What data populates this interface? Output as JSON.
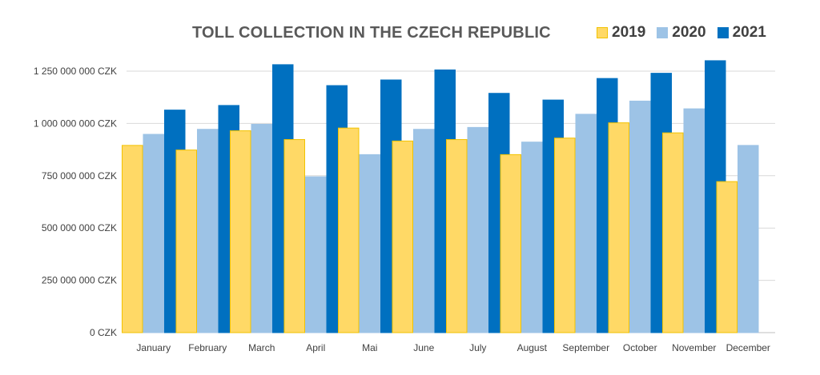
{
  "chart_data": {
    "type": "bar",
    "title": "TOLL COLLECTION IN THE CZECH REPUBLIC",
    "xlabel": "",
    "ylabel": "",
    "categories": [
      "January",
      "February",
      "March",
      "April",
      "Mai",
      "June",
      "July",
      "August",
      "September",
      "October",
      "November",
      "December"
    ],
    "series": [
      {
        "name": "2019",
        "color": "#FFD966",
        "border": "#F2C200",
        "values": [
          895000000,
          873000000,
          965000000,
          923000000,
          978000000,
          916000000,
          923000000,
          851000000,
          930000000,
          1003000000,
          955000000,
          722000000
        ]
      },
      {
        "name": "2020",
        "color": "#9DC3E6",
        "border": "#9DC3E6",
        "values": [
          948000000,
          972000000,
          996000000,
          745000000,
          851000000,
          972000000,
          981000000,
          911000000,
          1044000000,
          1107000000,
          1070000000,
          895000000
        ]
      },
      {
        "name": "2021",
        "color": "#0070C0",
        "border": "#0070C0",
        "values": [
          1064000000,
          1086000000,
          1281000000,
          1181000000,
          1208000000,
          1256000000,
          1144000000,
          1112000000,
          1215000000,
          1240000000,
          1300000000,
          null
        ]
      }
    ],
    "yticks": [
      "0 CZK",
      "250 000 000 CZK",
      "500 000 000 CZK",
      "750 000 000 CZK",
      "1 000 000 000 CZK",
      "1 250 000 000 CZK"
    ],
    "ytick_values": [
      0,
      250000000,
      500000000,
      750000000,
      1000000000,
      1250000000
    ],
    "ylim": [
      0,
      1300000000
    ],
    "grid": true,
    "legend_position": "top-right"
  }
}
